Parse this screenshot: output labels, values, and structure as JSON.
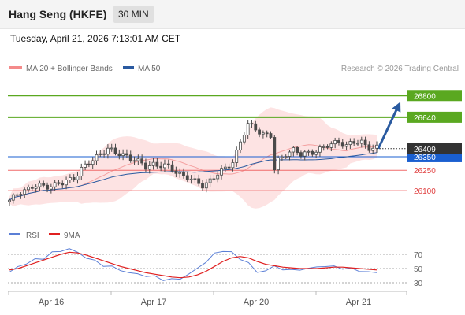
{
  "header": {
    "instrument": "Hang Seng (HKFE)",
    "timeframe": "30 MIN",
    "datetime": "Tuesday, April 21, 2026 7:13:01 AM CET"
  },
  "legend": {
    "ma20_label": "MA 20 + Bollinger Bands",
    "ma50_label": "MA 50",
    "ma20_color": "#f48a8a",
    "ma50_color": "#2a5aa0",
    "credit": "Research © 2026 Trading Central"
  },
  "rsi_legend": {
    "rsi_label": "RSI",
    "ma_label": "9MA",
    "rsi_color": "#5b7fd6",
    "ma_color": "#e02020"
  },
  "colors": {
    "candle": "#4a4a4a",
    "target": "#5aa820",
    "pivot": "#1a5fd0",
    "support": "#f06a6a",
    "band_fill": "#fde0e0",
    "forecast_arrow": "#2a5aa0",
    "last_price_tag": "#333333"
  },
  "chart_data": {
    "type": "candlestick",
    "instrument": "Hang Seng (HKFE)",
    "interval": "30 MIN",
    "y_range": [
      25950,
      26900
    ],
    "x_labels": [
      "Apr 16",
      "Apr 17",
      "Apr 20",
      "Apr 21"
    ],
    "last_price": 26409,
    "levels": [
      {
        "value": 26800,
        "label": "26800",
        "kind": "target"
      },
      {
        "value": 26640,
        "label": "26640",
        "kind": "target"
      },
      {
        "value": 26350,
        "label": "26350",
        "kind": "pivot"
      },
      {
        "value": 26250,
        "label": "26250",
        "kind": "support"
      },
      {
        "value": 26100,
        "label": "26100",
        "kind": "support"
      }
    ],
    "last_price_label": "26409",
    "price_path": [
      [
        0,
        26020
      ],
      [
        3,
        26100
      ],
      [
        7,
        26130
      ],
      [
        11,
        26140
      ],
      [
        14,
        26150
      ],
      [
        17,
        26200
      ],
      [
        19,
        26260
      ],
      [
        22,
        26320
      ],
      [
        24,
        26380
      ],
      [
        26,
        26410
      ],
      [
        28,
        26370
      ],
      [
        31,
        26360
      ],
      [
        33,
        26330
      ],
      [
        36,
        26270
      ],
      [
        38,
        26300
      ],
      [
        41,
        26280
      ],
      [
        44,
        26240
      ],
      [
        47,
        26200
      ],
      [
        49,
        26160
      ],
      [
        51,
        26140
      ],
      [
        53,
        26180
      ],
      [
        55,
        26220
      ],
      [
        57,
        26260
      ],
      [
        59,
        26320
      ],
      [
        61,
        26460
      ],
      [
        63,
        26580
      ],
      [
        65,
        26560
      ],
      [
        67,
        26520
      ],
      [
        69,
        26500
      ],
      [
        70,
        26250
      ],
      [
        71,
        26320
      ],
      [
        73,
        26380
      ],
      [
        75,
        26400
      ],
      [
        77,
        26360
      ],
      [
        79,
        26380
      ],
      [
        81,
        26400
      ],
      [
        83,
        26410
      ],
      [
        85,
        26440
      ],
      [
        87,
        26470
      ],
      [
        89,
        26430
      ],
      [
        91,
        26450
      ],
      [
        93,
        26460
      ],
      [
        95,
        26420
      ],
      [
        97,
        26409
      ]
    ],
    "forecast_target": 26800,
    "rsi": {
      "levels": [
        70,
        50,
        30
      ],
      "series": [
        {
          "name": "RSI",
          "values": [
            45,
            52,
            58,
            62,
            65,
            72,
            75,
            78,
            72,
            66,
            60,
            55,
            52,
            48,
            44,
            42,
            40,
            38,
            35,
            34,
            36,
            42,
            50,
            60,
            70,
            76,
            72,
            64,
            58,
            44,
            48,
            52,
            50,
            47,
            49,
            50,
            52,
            54,
            52,
            51,
            49,
            47,
            45,
            44
          ]
        },
        {
          "name": "9MA",
          "values": [
            48,
            50,
            54,
            58,
            62,
            66,
            70,
            73,
            72,
            69,
            65,
            61,
            57,
            53,
            50,
            47,
            44,
            42,
            40,
            38,
            37,
            38,
            41,
            46,
            53,
            60,
            65,
            67,
            65,
            60,
            56,
            54,
            52,
            51,
            50,
            50,
            50,
            51,
            52,
            52,
            51,
            50,
            49,
            48
          ]
        }
      ]
    }
  }
}
